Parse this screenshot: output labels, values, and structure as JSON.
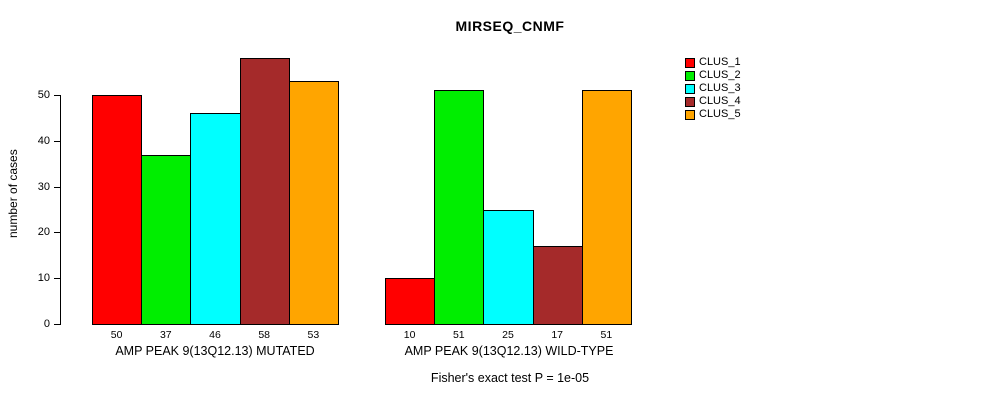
{
  "title": "MIRSEQ_CNMF",
  "chart_data": {
    "type": "bar",
    "title": "MIRSEQ_CNMF",
    "ylabel": "number of cases",
    "yticks": [
      0,
      10,
      20,
      30,
      40,
      50
    ],
    "ylim": [
      0,
      58
    ],
    "grid": false,
    "legend_position": "top-right",
    "series": [
      "CLUS_1",
      "CLUS_2",
      "CLUS_3",
      "CLUS_4",
      "CLUS_5"
    ],
    "colors": [
      "#FF0000",
      "#00EE00",
      "#00FFFF",
      "#A52A2A",
      "#FFA500"
    ],
    "groups": [
      {
        "label": "AMP PEAK 9(13Q12.13) MUTATED",
        "values": [
          50,
          37,
          46,
          58,
          53
        ]
      },
      {
        "label": "AMP PEAK 9(13Q12.13) WILD-TYPE",
        "values": [
          10,
          51,
          25,
          17,
          51
        ]
      }
    ],
    "annotation": "Fisher's exact test P = 1e-05"
  }
}
